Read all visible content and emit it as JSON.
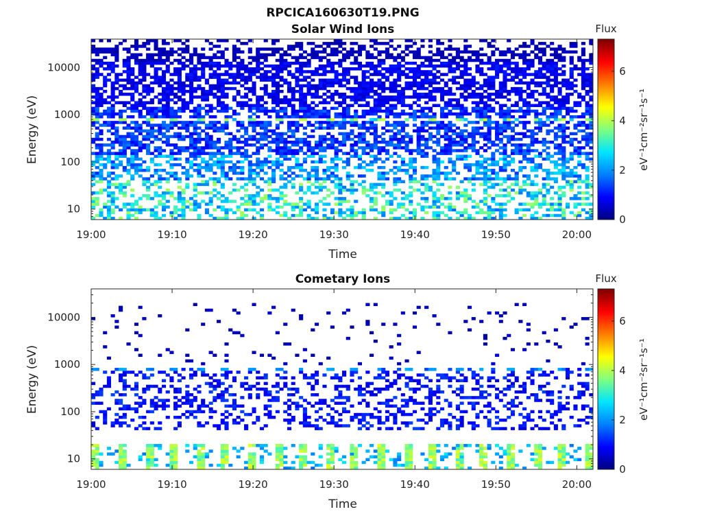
{
  "figure_title": "RPCICA160630T19.PNG",
  "colors": {
    "colormap": [
      "#00007f",
      "#0000ff",
      "#007fff",
      "#00e5ff",
      "#7fff7f",
      "#ffff00",
      "#ff7f00",
      "#ff0000",
      "#7f0000"
    ],
    "axis": "#262626",
    "background": "#ffffff"
  },
  "chart_data": [
    {
      "type": "heatmap",
      "title": "Solar Wind Ions",
      "xlabel": "Time",
      "ylabel": "Energy (eV)",
      "x_ticks": [
        "19:00",
        "19:10",
        "19:20",
        "19:30",
        "19:40",
        "19:50",
        "20:00"
      ],
      "x_range": [
        "19:00",
        "20:02"
      ],
      "y_scale": "log",
      "y_ticks": [
        "10",
        "100",
        "1000",
        "10000"
      ],
      "y_range": [
        6,
        40000
      ],
      "colorbar": {
        "label": "Flux",
        "units": "eV⁻¹cm⁻²sr⁻¹s⁻¹",
        "ticks": [
          "0",
          "2",
          "4",
          "6"
        ],
        "range": [
          0,
          7.3
        ]
      },
      "flux_bands": [
        {
          "energy_range": [
            13000,
            40000
          ],
          "typical_flux": 0.4,
          "coverage": "dense, sparse above 25000"
        },
        {
          "energy_range": [
            1500,
            13000
          ],
          "typical_flux": 0.8,
          "coverage": "dense"
        },
        {
          "energy_range": [
            850,
            1500
          ],
          "typical_flux": 1.2,
          "coverage": "dense"
        },
        {
          "energy_range": [
            700,
            850
          ],
          "typical_flux": 3.8,
          "coverage": "periodic peaks every ~3.2 min"
        },
        {
          "energy_range": [
            150,
            700
          ],
          "typical_flux": 1.3,
          "coverage": "dense"
        },
        {
          "energy_range": [
            40,
            150
          ],
          "typical_flux": 2.0,
          "coverage": "moderate"
        },
        {
          "energy_range": [
            6,
            40
          ],
          "typical_flux": 2.8,
          "coverage": "patchy"
        }
      ]
    },
    {
      "type": "heatmap",
      "title": "Cometary Ions",
      "xlabel": "Time",
      "ylabel": "Energy (eV)",
      "x_ticks": [
        "19:00",
        "19:10",
        "19:20",
        "19:30",
        "19:40",
        "19:50",
        "20:00"
      ],
      "x_range": [
        "19:00",
        "20:02"
      ],
      "y_scale": "log",
      "y_ticks": [
        "10",
        "100",
        "1000",
        "10000"
      ],
      "y_range": [
        6,
        40000
      ],
      "colorbar": {
        "label": "Flux",
        "units": "eV⁻¹cm⁻²sr⁻¹s⁻¹",
        "ticks": [
          "0",
          "2",
          "4",
          "6"
        ],
        "range": [
          0,
          7.3
        ]
      },
      "flux_bands": [
        {
          "energy_range": [
            1000,
            20000
          ],
          "typical_flux": 0.4,
          "coverage": "very sparse"
        },
        {
          "energy_range": [
            700,
            900
          ],
          "typical_flux": 2.0,
          "coverage": "periodic peaks every ~3.2 min"
        },
        {
          "energy_range": [
            40,
            700
          ],
          "typical_flux": 1.0,
          "coverage": "sparse"
        },
        {
          "energy_range": [
            6,
            22
          ],
          "typical_flux": 3.8,
          "coverage": "periodic peaks every ~3.2 min"
        }
      ]
    }
  ]
}
